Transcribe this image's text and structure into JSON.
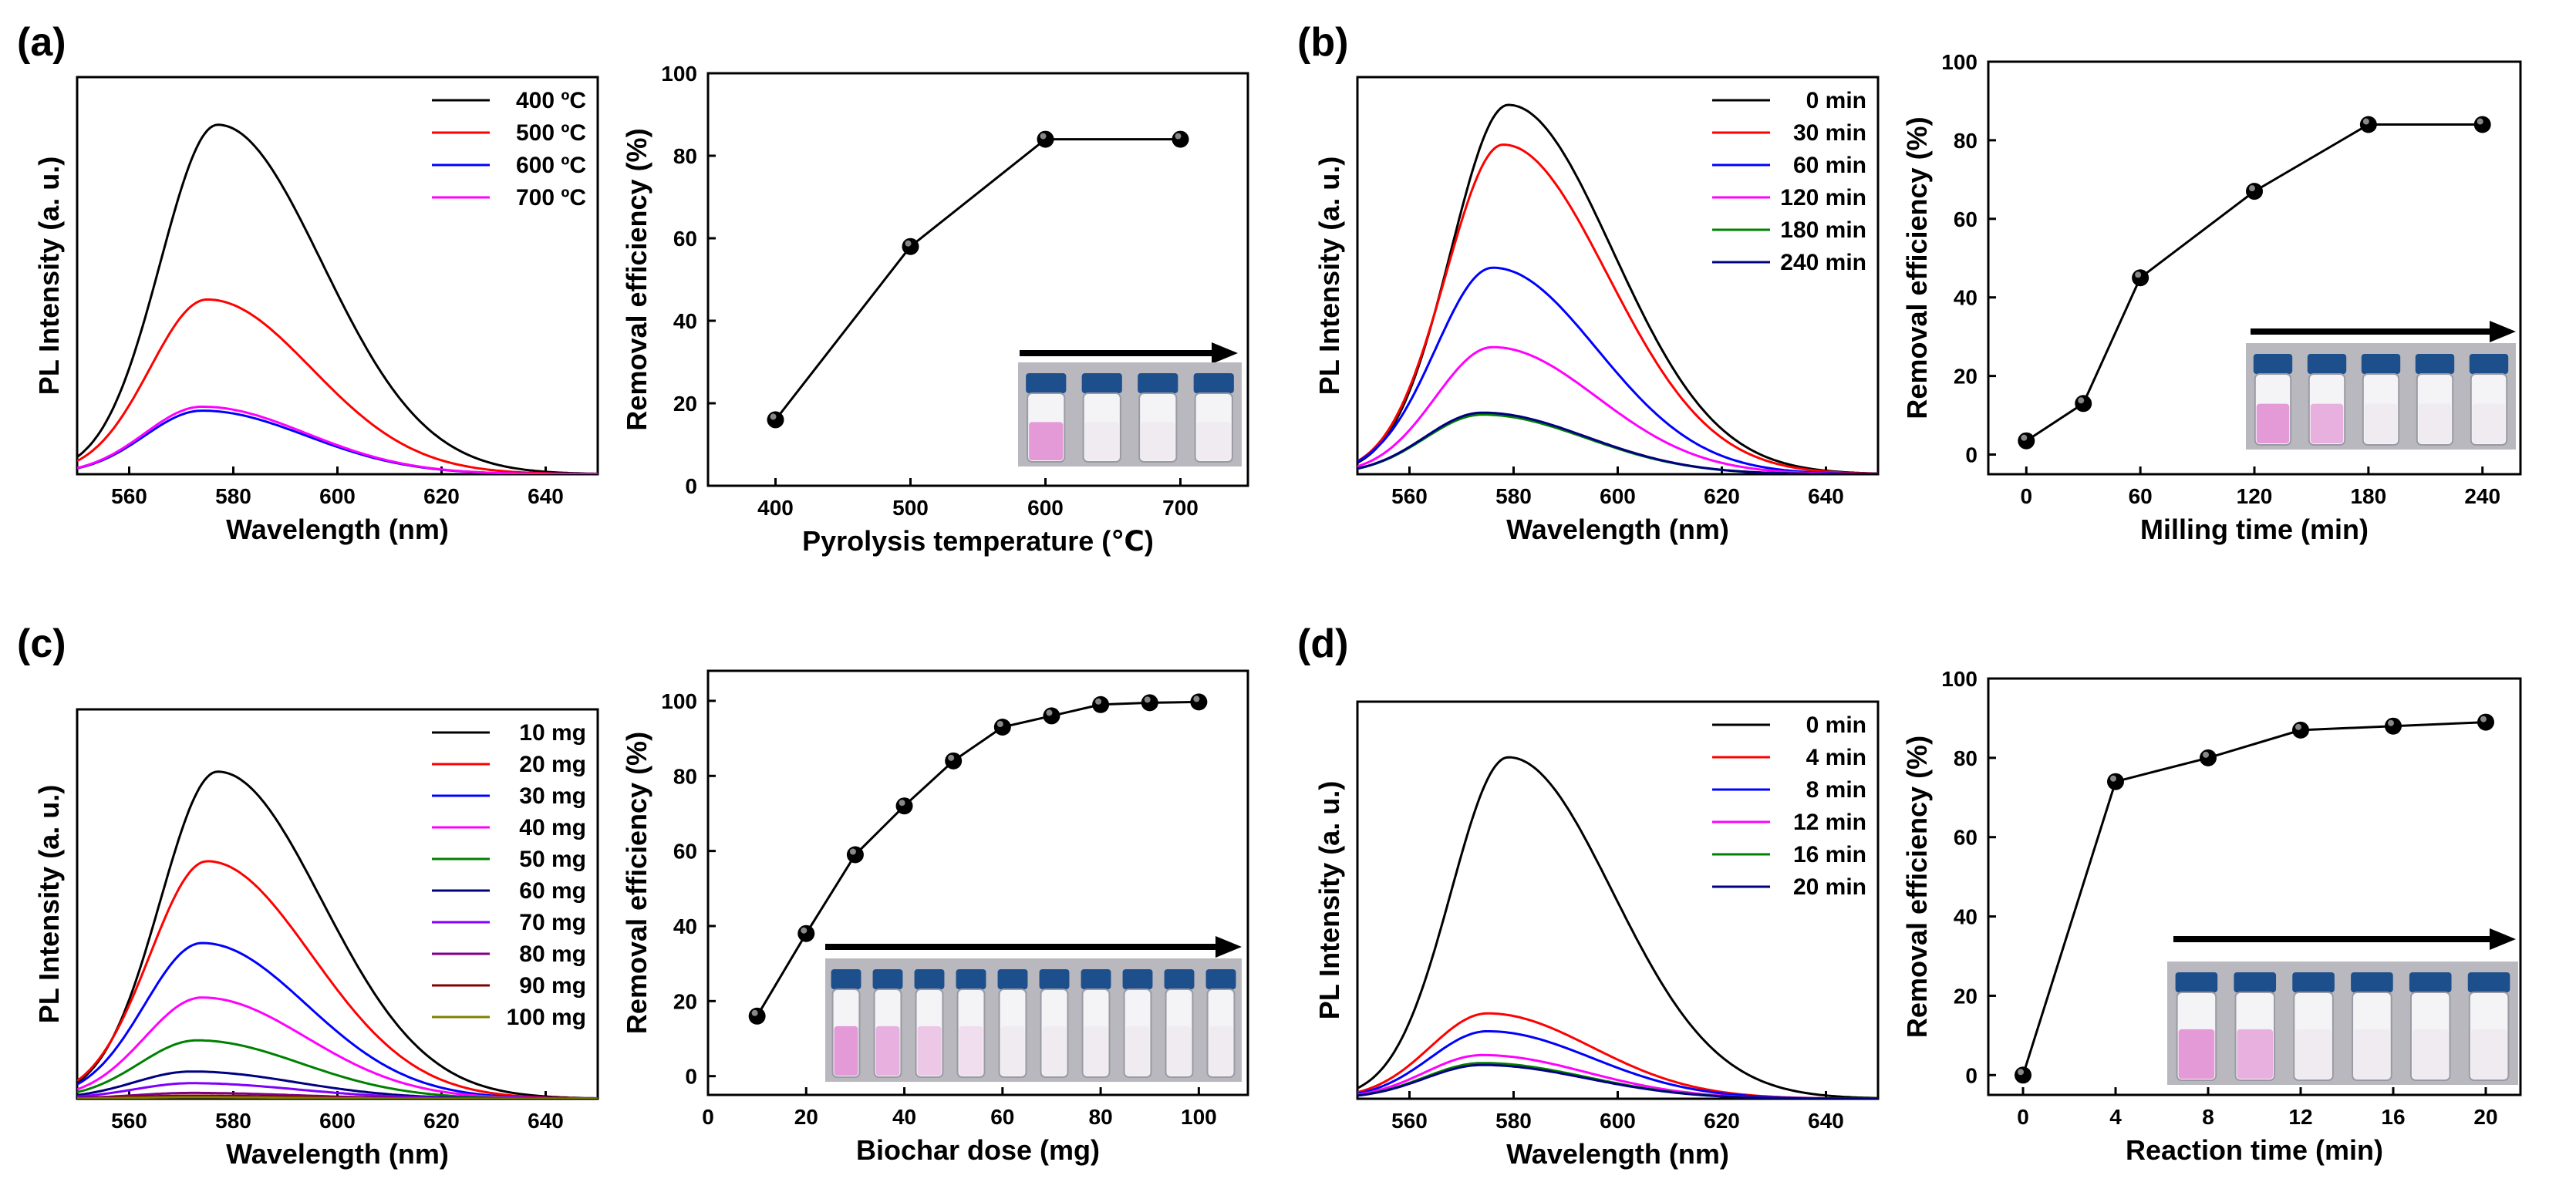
{
  "figure": {
    "panel_labels": [
      "(a)",
      "(b)",
      "(c)",
      "(d)"
    ]
  },
  "chart_data": [
    {
      "id": "a-pl",
      "type": "line",
      "panel": "(a)",
      "title": "",
      "xlabel": "Wavelength (nm)",
      "ylabel": "PL Intensity (a. u.)",
      "xlim": [
        550,
        650
      ],
      "ylim": [
        0,
        1.0
      ],
      "xticks": [
        560,
        580,
        600,
        620,
        640
      ],
      "yticks_shown": false,
      "legend_position": "top-right",
      "series": [
        {
          "name": "400 ºC",
          "color": "#000000",
          "peak_x": 577,
          "peak_y": 0.88
        },
        {
          "name": "500 ºC",
          "color": "#ff0000",
          "peak_x": 575,
          "peak_y": 0.44
        },
        {
          "name": "600 ºC",
          "color": "#0000ff",
          "peak_x": 574,
          "peak_y": 0.16
        },
        {
          "name": "700 ºC",
          "color": "#ff00ff",
          "peak_x": 574,
          "peak_y": 0.17
        }
      ]
    },
    {
      "id": "a-re",
      "type": "scatter",
      "panel": "(a)",
      "title": "",
      "xlabel": "Pyrolysis temperature (℃)",
      "ylabel": "Removal efficiency (%)",
      "xlim": [
        350,
        750
      ],
      "ylim": [
        0,
        100
      ],
      "xticks": [
        400,
        500,
        600,
        700
      ],
      "yticks": [
        0,
        20,
        40,
        60,
        80,
        100
      ],
      "x": [
        400,
        500,
        600,
        700
      ],
      "values": [
        16,
        58,
        84,
        84
      ],
      "vials": 4
    },
    {
      "id": "b-pl",
      "type": "line",
      "panel": "(b)",
      "title": "",
      "xlabel": "Wavelength (nm)",
      "ylabel": "PL Intensity (a. u.)",
      "xlim": [
        550,
        650
      ],
      "ylim": [
        0,
        1.0
      ],
      "xticks": [
        560,
        580,
        600,
        620,
        640
      ],
      "yticks_shown": false,
      "legend_position": "top-right",
      "series": [
        {
          "name": "0 min",
          "color": "#000000",
          "peak_x": 579,
          "peak_y": 0.93
        },
        {
          "name": "30 min",
          "color": "#ff0000",
          "peak_x": 578,
          "peak_y": 0.83
        },
        {
          "name": "60 min",
          "color": "#0000ff",
          "peak_x": 576,
          "peak_y": 0.52
        },
        {
          "name": "120 min",
          "color": "#ff00ff",
          "peak_x": 576,
          "peak_y": 0.32
        },
        {
          "name": "180 min",
          "color": "#008000",
          "peak_x": 574,
          "peak_y": 0.15
        },
        {
          "name": "240 min",
          "color": "#000080",
          "peak_x": 574,
          "peak_y": 0.155
        }
      ]
    },
    {
      "id": "b-re",
      "type": "scatter",
      "panel": "(b)",
      "title": "",
      "xlabel": "Milling time (min)",
      "ylabel": "Removal efficiency (%)",
      "xlim": [
        -20,
        260
      ],
      "ylim": [
        -5,
        100
      ],
      "xticks": [
        0,
        60,
        120,
        180,
        240
      ],
      "yticks": [
        0,
        20,
        40,
        60,
        80,
        100
      ],
      "x": [
        0,
        30,
        60,
        120,
        180,
        240
      ],
      "values": [
        3.5,
        13,
        45,
        67,
        84,
        84
      ],
      "vials": 5
    },
    {
      "id": "c-pl",
      "type": "line",
      "panel": "(c)",
      "title": "",
      "xlabel": "Wavelength (nm)",
      "ylabel": "PL Intensity (a. u.)",
      "xlim": [
        550,
        650
      ],
      "ylim": [
        0,
        1.0
      ],
      "xticks": [
        560,
        580,
        600,
        620,
        640
      ],
      "yticks_shown": false,
      "legend_position": "top-right",
      "series": [
        {
          "name": "10 mg",
          "color": "#000000",
          "peak_x": 577,
          "peak_y": 0.84
        },
        {
          "name": "20 mg",
          "color": "#ff0000",
          "peak_x": 575,
          "peak_y": 0.61
        },
        {
          "name": "30 mg",
          "color": "#0000ff",
          "peak_x": 574,
          "peak_y": 0.4
        },
        {
          "name": "40 mg",
          "color": "#ff00ff",
          "peak_x": 574,
          "peak_y": 0.26
        },
        {
          "name": "50 mg",
          "color": "#008000",
          "peak_x": 573,
          "peak_y": 0.15
        },
        {
          "name": "60 mg",
          "color": "#000080",
          "peak_x": 572,
          "peak_y": 0.07
        },
        {
          "name": "70 mg",
          "color": "#8000ff",
          "peak_x": 572,
          "peak_y": 0.04
        },
        {
          "name": "80 mg",
          "color": "#800080",
          "peak_x": 572,
          "peak_y": 0.015
        },
        {
          "name": "90 mg",
          "color": "#800000",
          "peak_x": 572,
          "peak_y": 0.008
        },
        {
          "name": "100 mg",
          "color": "#808000",
          "peak_x": 572,
          "peak_y": 0.004
        }
      ]
    },
    {
      "id": "c-re",
      "type": "scatter",
      "panel": "(c)",
      "title": "",
      "xlabel": "Biochar dose (mg)",
      "ylabel": "Removal efficiency (%)",
      "xlim": [
        0,
        110
      ],
      "ylim": [
        -5,
        108
      ],
      "xticks": [
        0,
        20,
        40,
        60,
        80,
        100
      ],
      "yticks": [
        0,
        20,
        40,
        60,
        80,
        100
      ],
      "x": [
        10,
        20,
        30,
        40,
        50,
        60,
        70,
        80,
        90,
        100
      ],
      "values": [
        16,
        38,
        59,
        72,
        84,
        93,
        96,
        99,
        99.5,
        99.7
      ],
      "vials": 10
    },
    {
      "id": "d-pl",
      "type": "line",
      "panel": "(d)",
      "title": "",
      "xlabel": "Wavelength (nm)",
      "ylabel": "PL Intensity (a. u.)",
      "xlim": [
        550,
        650
      ],
      "ylim": [
        0,
        1.0
      ],
      "xticks": [
        560,
        580,
        600,
        620,
        640
      ],
      "yticks_shown": false,
      "legend_position": "top-right",
      "series": [
        {
          "name": "0 min",
          "color": "#000000",
          "peak_x": 579,
          "peak_y": 0.86
        },
        {
          "name": "4 min",
          "color": "#ff0000",
          "peak_x": 575,
          "peak_y": 0.215
        },
        {
          "name": "8 min",
          "color": "#0000ff",
          "peak_x": 575,
          "peak_y": 0.17
        },
        {
          "name": "12 min",
          "color": "#ff00ff",
          "peak_x": 574,
          "peak_y": 0.11
        },
        {
          "name": "16 min",
          "color": "#008000",
          "peak_x": 574,
          "peak_y": 0.09
        },
        {
          "name": "20 min",
          "color": "#000080",
          "peak_x": 574,
          "peak_y": 0.085
        }
      ]
    },
    {
      "id": "d-re",
      "type": "scatter",
      "panel": "(d)",
      "title": "",
      "xlabel": "Reaction time (min)",
      "ylabel": "Removal efficiency (%)",
      "xlim": [
        -1.5,
        21.5
      ],
      "ylim": [
        -5,
        100
      ],
      "xticks": [
        0,
        4,
        8,
        12,
        16,
        20
      ],
      "yticks": [
        0,
        20,
        40,
        60,
        80,
        100
      ],
      "x": [
        0,
        4,
        8,
        12,
        16,
        20
      ],
      "values": [
        0,
        74,
        80,
        87,
        88,
        89
      ],
      "vials": 6
    }
  ],
  "colors": {
    "vial_cap": "#1d4f8c",
    "vial_liquid_pink": "#e39ad6",
    "vial_liquid_clear": "#eeeaf0",
    "photo_background": "#b8b8be"
  }
}
